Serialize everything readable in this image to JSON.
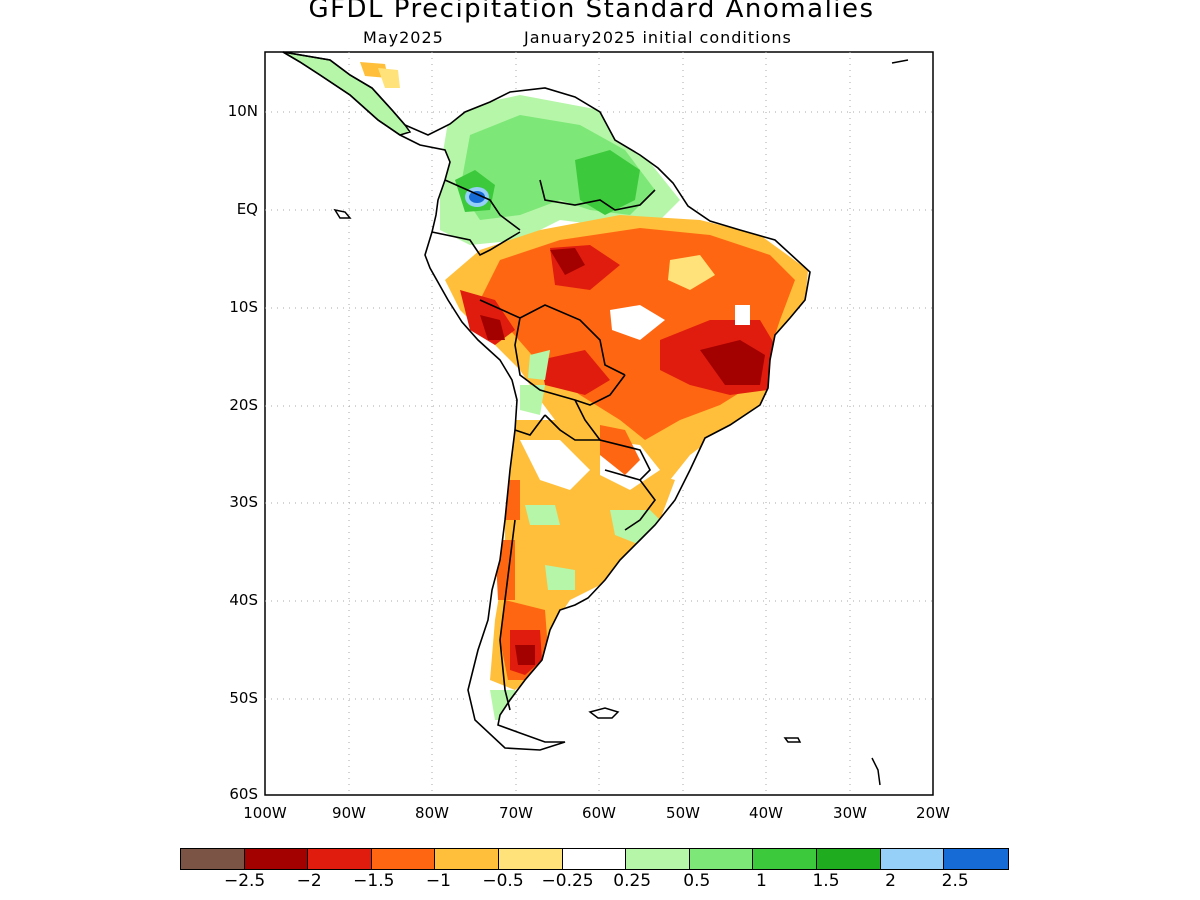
{
  "title": "GFDL Precipitation Standard Anomalies",
  "subtitle_left": "May2025",
  "subtitle_right": "January2025 initial conditions",
  "axes": {
    "y_ticks": [
      "10N",
      "EQ",
      "10S",
      "20S",
      "30S",
      "40S",
      "50S",
      "60S"
    ],
    "x_ticks": [
      "100W",
      "90W",
      "80W",
      "70W",
      "60W",
      "50W",
      "40W",
      "30W",
      "20W"
    ],
    "lat_range": [
      -60,
      15
    ],
    "lon_range": [
      -100,
      -20
    ]
  },
  "colorbar": {
    "colors": [
      "#7b5446",
      "#a30000",
      "#e01c0e",
      "#ff6611",
      "#ffbf3a",
      "#ffe37a",
      "#ffffff",
      "#b6f6a8",
      "#7de877",
      "#3cc93c",
      "#1fad1f",
      "#96cff8",
      "#176bd6"
    ],
    "labels": [
      "−2.5",
      "−2",
      "−1.5",
      "−1",
      "−0.5",
      "−0.25",
      "0.25",
      "0.5",
      "1",
      "1.5",
      "2",
      "2.5"
    ]
  }
}
